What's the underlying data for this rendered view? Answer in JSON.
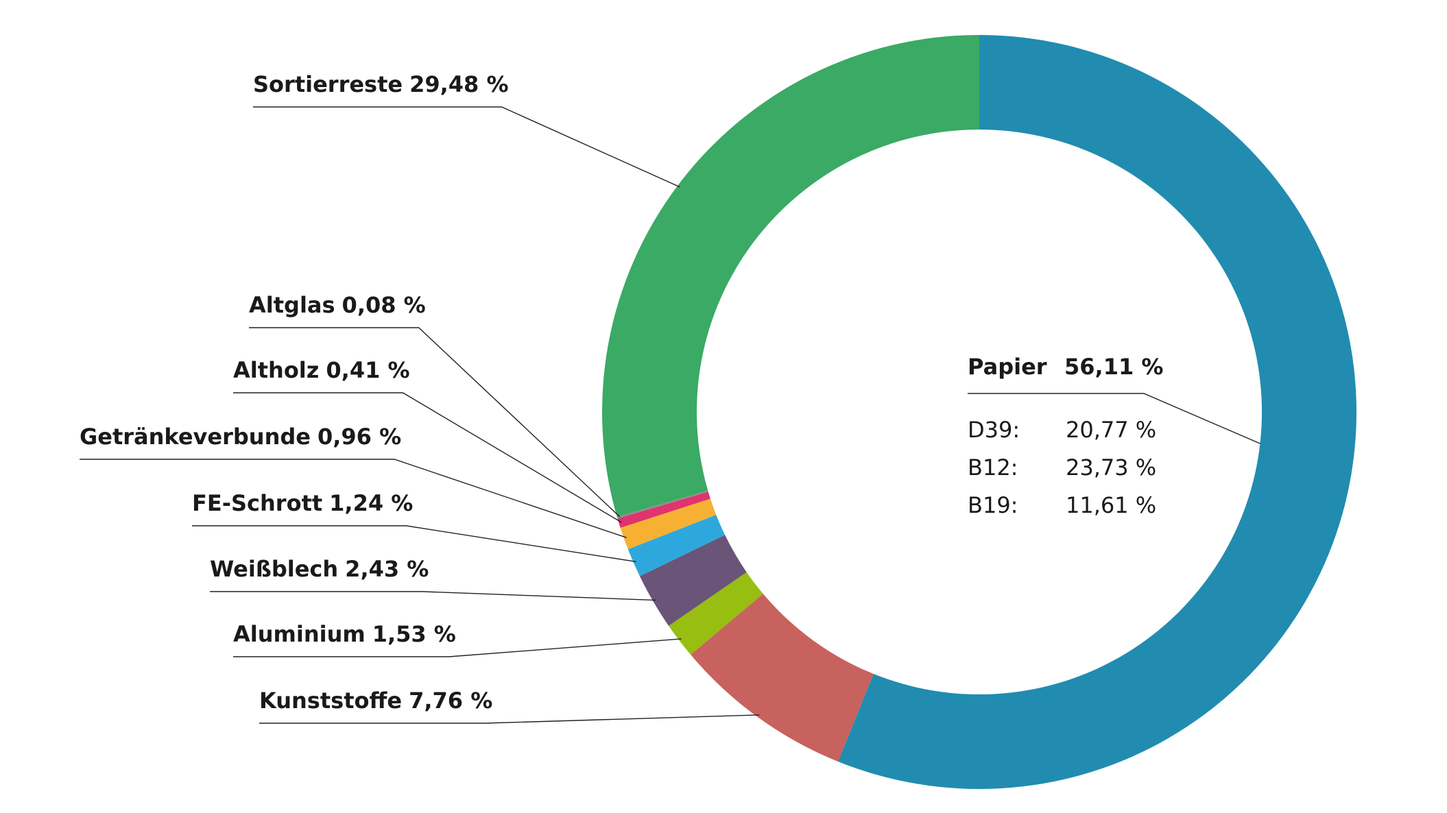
{
  "chart_data": {
    "type": "donut",
    "categories": [
      "Papier",
      "Kunststoffe",
      "Aluminium",
      "Weißblech",
      "FE-Schrott",
      "Getränkeverbunde",
      "Altholz",
      "Altglas",
      "Sortierreste"
    ],
    "values": [
      56.11,
      7.76,
      1.53,
      2.43,
      1.24,
      0.96,
      0.41,
      0.08,
      29.48
    ],
    "value_labels": [
      "56,11 %",
      "7,76 %",
      "1,53 %",
      "2,43 %",
      "1,24 %",
      "0,96 %",
      "0,41 %",
      "0,08 %",
      "29,48 %"
    ],
    "colors": [
      "#218cb0",
      "#c8625e",
      "#97be10",
      "#6a5478",
      "#2ea8dc",
      "#f6b133",
      "#e0336f",
      "#8c8c8c",
      "#3aaa64"
    ],
    "papier_breakdown": [
      {
        "name": "D39:",
        "value": 20.77,
        "value_label": "20,77 %"
      },
      {
        "name": "B12:",
        "value": 23.73,
        "value_label": "23,73 %"
      },
      {
        "name": "B19:",
        "value": 11.61,
        "value_label": "11,61 %"
      }
    ]
  }
}
